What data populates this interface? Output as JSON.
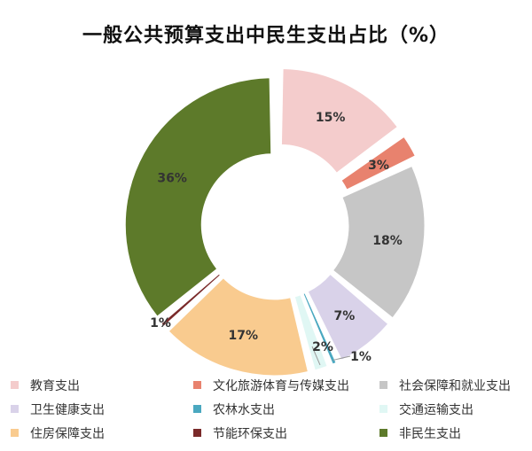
{
  "chart_data": {
    "type": "pie",
    "title": "一般公共预算支出中民生支出占比（%）",
    "categories": [
      "教育支出",
      "文化旅游体育与传媒支出",
      "社会保障和就业支出",
      "卫生健康支出",
      "农林水支出",
      "交通运输支出",
      "住房保障支出",
      "节能环保支出",
      "非民生支出"
    ],
    "values": [
      15,
      3,
      18,
      7,
      1,
      2,
      17,
      1,
      36
    ],
    "data_labels": [
      "15%",
      "3%",
      "18%",
      "7%",
      "1%",
      "2%",
      "17%",
      "1%",
      "36%"
    ],
    "colors": [
      "#f4cccc",
      "#e8826e",
      "#c6c6c6",
      "#d9d2e9",
      "#4aa8c0",
      "#e0f7f4",
      "#f9cb8f",
      "#7a2a2a",
      "#5d7a2a"
    ],
    "legend_position": "bottom",
    "donut": true
  }
}
